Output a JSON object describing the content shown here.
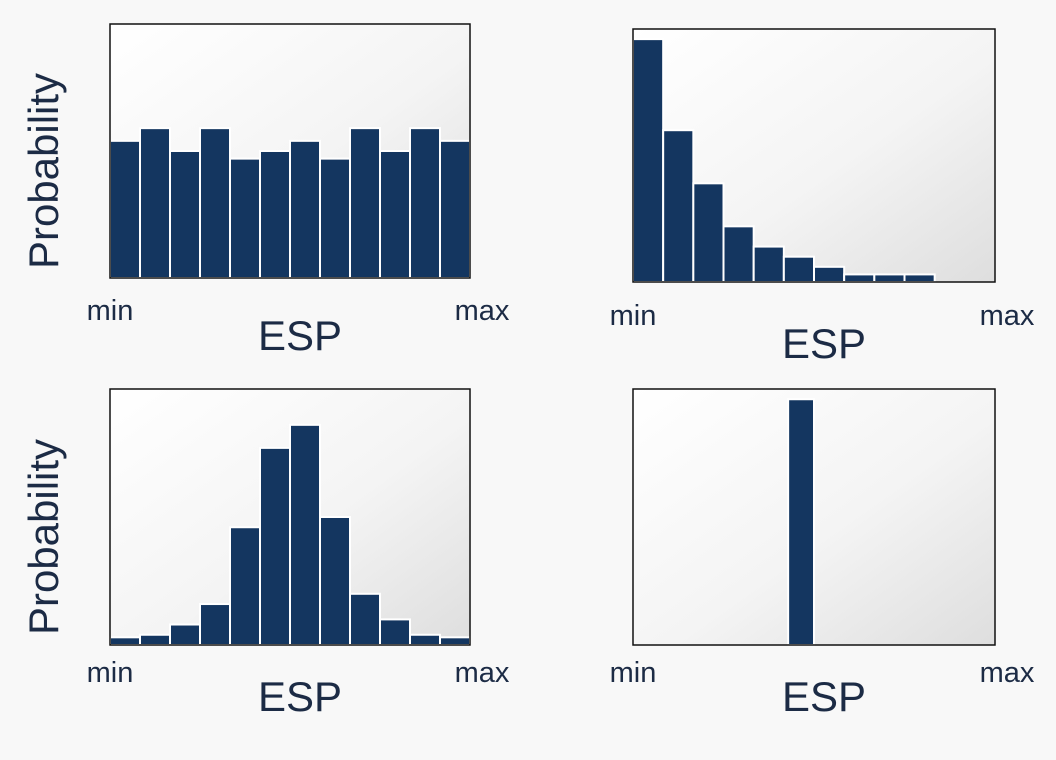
{
  "colors": {
    "bar": "#143660",
    "bar_edge": "#ffffff",
    "frame": "#111111",
    "panel_light": "#ffffff",
    "panel_dark": "#dedede",
    "text": "#1c2b45"
  },
  "chart_data": [
    {
      "type": "bar",
      "panel": "top-left",
      "distribution": "uniform",
      "xlabel": "ESP",
      "ylabel": "Probability",
      "x_tick_labels": [
        "min",
        "max"
      ],
      "bins": 12,
      "values": [
        0.54,
        0.59,
        0.5,
        0.59,
        0.47,
        0.5,
        0.54,
        0.47,
        0.59,
        0.5,
        0.59,
        0.54
      ],
      "ylim": [
        0,
        1
      ],
      "grid": false,
      "legend": "none"
    },
    {
      "type": "bar",
      "panel": "top-right",
      "distribution": "exponential",
      "xlabel": "ESP",
      "ylabel": "",
      "x_tick_labels": [
        "min",
        "max"
      ],
      "bins": 12,
      "values": [
        0.96,
        0.6,
        0.39,
        0.22,
        0.14,
        0.1,
        0.06,
        0.03,
        0.03,
        0.03,
        0.0,
        0.0
      ],
      "ylim": [
        0,
        1
      ],
      "grid": false,
      "legend": "none"
    },
    {
      "type": "bar",
      "panel": "bottom-left",
      "distribution": "normal",
      "xlabel": "ESP",
      "ylabel": "Probability",
      "x_tick_labels": [
        "min",
        "max"
      ],
      "bins": 12,
      "values": [
        0.03,
        0.04,
        0.08,
        0.16,
        0.46,
        0.77,
        0.86,
        0.5,
        0.2,
        0.1,
        0.04,
        0.03
      ],
      "ylim": [
        0,
        1
      ],
      "grid": false,
      "legend": "none"
    },
    {
      "type": "bar",
      "panel": "bottom-right",
      "distribution": "point",
      "xlabel": "ESP",
      "ylabel": "",
      "x_tick_labels": [
        "min",
        "max"
      ],
      "bins": 14,
      "values": [
        0,
        0,
        0,
        0,
        0,
        0,
        0.96,
        0,
        0,
        0,
        0,
        0,
        0,
        0
      ],
      "ylim": [
        0,
        1
      ],
      "grid": false,
      "legend": "none"
    }
  ]
}
